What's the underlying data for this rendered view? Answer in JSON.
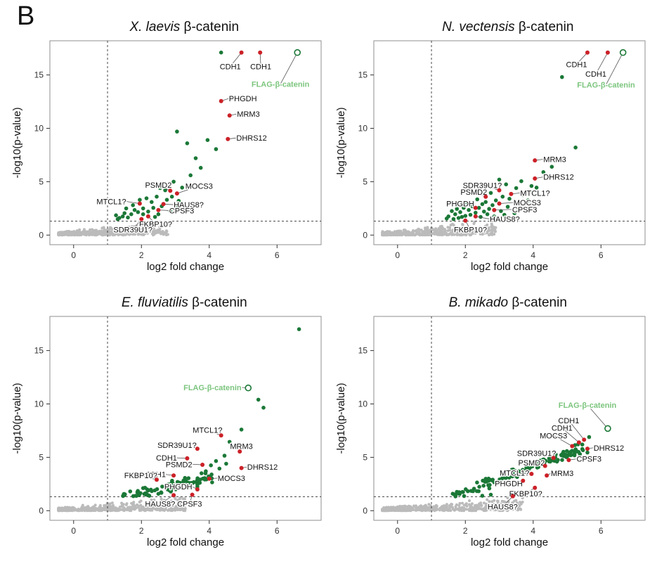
{
  "panel_label": "B",
  "colors": {
    "green_point": "#1b7837",
    "red_point": "#cc2128",
    "gray_point": "#bbbbbb",
    "flag_green": "#7cc57e",
    "panel_border": "#8f8f8f",
    "threshold_line": "#333333",
    "connector": "#555555"
  },
  "chart_data": [
    {
      "type": "scatter",
      "title_italic": "X. laevis",
      "title_rest": " β-catenin",
      "xlabel": "log2 fold change",
      "ylabel": "-log10(p-value)",
      "xlim": [
        -0.7,
        7.3
      ],
      "ylim": [
        -0.9,
        18.2
      ],
      "xticks": [
        0,
        2,
        4,
        6
      ],
      "yticks": [
        0,
        5,
        10,
        15
      ],
      "vline": 1.0,
      "hline": 1.3,
      "gray_cloud": {
        "seed": 101,
        "n": 430,
        "xmin": -0.45,
        "xmax": 2.8,
        "ycap": 1.55
      },
      "green_band": null,
      "green_points": [
        [
          4.35,
          17.1
        ],
        [
          3.05,
          9.7
        ],
        [
          3.35,
          8.6
        ],
        [
          3.95,
          8.9
        ],
        [
          4.2,
          8.05
        ],
        [
          3.6,
          7.2
        ],
        [
          2.95,
          5.0
        ],
        [
          3.2,
          4.45
        ],
        [
          3.45,
          5.6
        ],
        [
          3.75,
          6.3
        ],
        [
          2.7,
          4.2
        ],
        [
          2.45,
          3.6
        ],
        [
          2.3,
          3.1
        ],
        [
          2.15,
          3.45
        ],
        [
          2.6,
          2.7
        ],
        [
          2.75,
          3.3
        ],
        [
          2.05,
          2.5
        ],
        [
          1.9,
          2.15
        ],
        [
          1.8,
          2.35
        ],
        [
          1.7,
          1.95
        ],
        [
          1.6,
          1.65
        ],
        [
          1.5,
          2.05
        ],
        [
          1.45,
          1.75
        ],
        [
          1.35,
          1.6
        ],
        [
          1.25,
          1.85
        ],
        [
          2.2,
          2.2
        ],
        [
          2.35,
          2.55
        ],
        [
          2.5,
          1.95
        ],
        [
          2.9,
          3.6
        ],
        [
          3.1,
          3.2
        ],
        [
          1.55,
          2.5
        ],
        [
          1.75,
          2.8
        ],
        [
          2.05,
          1.95
        ],
        [
          2.85,
          2.25
        ],
        [
          3.25,
          2.75
        ],
        [
          1.95,
          3.3
        ],
        [
          2.55,
          4.4
        ],
        [
          3.0,
          2.6
        ],
        [
          1.3,
          1.5
        ],
        [
          2.4,
          1.7
        ]
      ],
      "flag": {
        "t": "FLAG-β-catenin",
        "x": 6.6,
        "y": 17.1,
        "lx": 6.1,
        "ly": 14.15,
        "a": "middle"
      },
      "labels": [
        {
          "t": "CDH1",
          "x": 4.95,
          "y": 17.1,
          "lx": 4.62,
          "ly": 15.8,
          "a": "middle"
        },
        {
          "t": "CDH1",
          "x": 5.5,
          "y": 17.1,
          "lx": 5.52,
          "ly": 15.8,
          "a": "middle"
        },
        {
          "t": "PHGDH",
          "x": 4.35,
          "y": 12.55,
          "lx": 4.58,
          "ly": 12.8,
          "a": "start"
        },
        {
          "t": "MRM3",
          "x": 4.6,
          "y": 11.2,
          "lx": 4.82,
          "ly": 11.35,
          "a": "start"
        },
        {
          "t": "DHRS12",
          "x": 4.55,
          "y": 9.0,
          "lx": 4.8,
          "ly": 9.1,
          "a": "start"
        },
        {
          "t": "PSMD2",
          "x": 2.85,
          "y": 4.15,
          "lx": 2.5,
          "ly": 4.7,
          "a": "middle"
        },
        {
          "t": "MOCS3",
          "x": 3.05,
          "y": 3.9,
          "lx": 3.7,
          "ly": 4.6,
          "a": "middle"
        },
        {
          "t": "MTCL1?",
          "x": 1.95,
          "y": 2.95,
          "lx": 1.55,
          "ly": 3.15,
          "a": "end"
        },
        {
          "t": "HAUS8?",
          "x": 2.65,
          "y": 2.9,
          "lx": 2.95,
          "ly": 2.85,
          "a": "start"
        },
        {
          "t": "CPSF3",
          "x": 2.5,
          "y": 2.35,
          "lx": 2.82,
          "ly": 2.3,
          "a": "start"
        },
        {
          "t": "FKBP10?",
          "x": 2.2,
          "y": 1.75,
          "lx": 2.42,
          "ly": 1.05,
          "a": "middle"
        },
        {
          "t": "SDR39U1?",
          "x": 2.0,
          "y": 1.5,
          "lx": 1.75,
          "ly": 0.5,
          "a": "middle"
        }
      ]
    },
    {
      "type": "scatter",
      "title_italic": "N. vectensis",
      "title_rest": " β-catenin",
      "xlabel": "log2 fold change",
      "ylabel": "-log10(p-value)",
      "xlim": [
        -0.7,
        7.3
      ],
      "ylim": [
        -0.9,
        18.2
      ],
      "xticks": [
        0,
        2,
        4,
        6
      ],
      "yticks": [
        0,
        5,
        10,
        15
      ],
      "vline": 1.0,
      "hline": 1.3,
      "gray_cloud": {
        "seed": 202,
        "n": 430,
        "xmin": -0.45,
        "xmax": 2.9,
        "ycap": 1.5
      },
      "green_band": null,
      "green_points": [
        [
          4.85,
          14.8
        ],
        [
          5.25,
          8.2
        ],
        [
          4.55,
          6.4
        ],
        [
          4.3,
          5.9
        ],
        [
          3.95,
          4.6
        ],
        [
          3.65,
          5.05
        ],
        [
          3.5,
          4.4
        ],
        [
          3.3,
          3.4
        ],
        [
          3.2,
          4.75
        ],
        [
          3.1,
          3.6
        ],
        [
          3.0,
          5.2
        ],
        [
          2.9,
          3.25
        ],
        [
          2.8,
          2.8
        ],
        [
          2.75,
          3.95
        ],
        [
          2.7,
          2.45
        ],
        [
          2.6,
          3.1
        ],
        [
          2.55,
          2.2
        ],
        [
          2.5,
          2.9
        ],
        [
          2.4,
          2.55
        ],
        [
          2.35,
          3.35
        ],
        [
          2.3,
          2.1
        ],
        [
          2.2,
          2.7
        ],
        [
          2.15,
          1.9
        ],
        [
          2.1,
          2.35
        ],
        [
          2.0,
          1.8
        ],
        [
          1.95,
          2.55
        ],
        [
          1.9,
          1.7
        ],
        [
          1.85,
          2.15
        ],
        [
          1.8,
          1.6
        ],
        [
          1.7,
          1.95
        ],
        [
          1.65,
          1.5
        ],
        [
          1.6,
          2.25
        ],
        [
          1.5,
          1.75
        ],
        [
          1.45,
          1.55
        ],
        [
          2.45,
          1.7
        ],
        [
          2.65,
          1.95
        ],
        [
          2.85,
          1.75
        ],
        [
          3.05,
          2.25
        ],
        [
          3.25,
          2.65
        ],
        [
          3.45,
          2.05
        ],
        [
          2.05,
          3.05
        ],
        [
          1.75,
          2.45
        ],
        [
          4.1,
          4.45
        ],
        [
          3.7,
          3.75
        ],
        [
          3.85,
          3.25
        ],
        [
          3.15,
          1.9
        ],
        [
          3.55,
          2.4
        ]
      ],
      "flag": {
        "t": "FLAG-β-catenin",
        "x": 6.65,
        "y": 17.1,
        "lx": 6.15,
        "ly": 14.1,
        "a": "middle"
      },
      "labels": [
        {
          "t": "CDH1",
          "x": 5.6,
          "y": 17.1,
          "lx": 5.28,
          "ly": 16.0,
          "a": "middle"
        },
        {
          "t": "CDH1",
          "x": 6.2,
          "y": 17.1,
          "lx": 5.85,
          "ly": 15.1,
          "a": "middle"
        },
        {
          "t": "MRM3",
          "x": 4.05,
          "y": 7.0,
          "lx": 4.3,
          "ly": 7.1,
          "a": "start"
        },
        {
          "t": "DHRS12",
          "x": 4.05,
          "y": 5.3,
          "lx": 4.3,
          "ly": 5.45,
          "a": "start"
        },
        {
          "t": "SDR39U1?",
          "x": 3.0,
          "y": 4.2,
          "lx": 2.5,
          "ly": 4.65,
          "a": "middle"
        },
        {
          "t": "PSMD2",
          "x": 2.6,
          "y": 3.6,
          "lx": 2.25,
          "ly": 4.05,
          "a": "middle"
        },
        {
          "t": "MTCL1?",
          "x": 3.35,
          "y": 3.85,
          "lx": 3.62,
          "ly": 3.95,
          "a": "start"
        },
        {
          "t": "PHGDH",
          "x": 2.3,
          "y": 2.55,
          "lx": 1.85,
          "ly": 2.95,
          "a": "middle"
        },
        {
          "t": "MOCS3",
          "x": 3.0,
          "y": 2.95,
          "lx": 3.42,
          "ly": 3.05,
          "a": "start"
        },
        {
          "t": "CPSF3",
          "x": 2.85,
          "y": 2.35,
          "lx": 3.38,
          "ly": 2.4,
          "a": "start"
        },
        {
          "t": "HAUS8?",
          "x": 2.3,
          "y": 1.75,
          "lx": 2.72,
          "ly": 1.5,
          "a": "start"
        },
        {
          "t": "FKBP10?",
          "x": 2.0,
          "y": 1.35,
          "lx": 2.15,
          "ly": 0.5,
          "a": "middle"
        }
      ]
    },
    {
      "type": "scatter",
      "title_italic": "E. fluviatilis",
      "title_rest": " β-catenin",
      "xlabel": "log2 fold change",
      "ylabel": "-log10(p-value)",
      "xlim": [
        -0.7,
        7.3
      ],
      "ylim": [
        -0.9,
        18.2
      ],
      "xticks": [
        0,
        2,
        4,
        6
      ],
      "yticks": [
        0,
        5,
        10,
        15
      ],
      "vline": 1.0,
      "hline": 1.3,
      "gray_cloud": {
        "seed": 303,
        "n": 480,
        "xmin": -0.45,
        "xmax": 3.3,
        "ycap": 1.45
      },
      "green_band": {
        "seed": 7,
        "n": 95,
        "x0": 1.45,
        "x1": 4.1,
        "slope": 0.72,
        "intercept": 0.18,
        "jitter": 0.55,
        "ymin": 1.35
      },
      "green_points": [
        [
          6.65,
          17.0
        ],
        [
          5.45,
          10.4
        ],
        [
          5.6,
          9.65
        ],
        [
          4.95,
          7.6
        ],
        [
          4.6,
          6.45
        ],
        [
          4.45,
          5.15
        ],
        [
          4.2,
          4.65
        ],
        [
          4.3,
          3.95
        ],
        [
          4.05,
          4.25
        ],
        [
          3.9,
          3.7
        ],
        [
          4.5,
          4.4
        ]
      ],
      "flag": {
        "t": "FLAG-β-catenin",
        "x": 5.15,
        "y": 11.5,
        "lx": 4.95,
        "ly": 11.55,
        "a": "end"
      },
      "labels": [
        {
          "t": "MTCL1?",
          "x": 4.35,
          "y": 7.05,
          "lx": 3.95,
          "ly": 7.55,
          "a": "middle"
        },
        {
          "t": "SDR39U1?",
          "x": 3.65,
          "y": 5.8,
          "lx": 3.05,
          "ly": 6.15,
          "a": "middle"
        },
        {
          "t": "MRM3",
          "x": 4.9,
          "y": 5.55,
          "lx": 4.95,
          "ly": 6.05,
          "a": "middle"
        },
        {
          "t": "CDH1",
          "x": 3.35,
          "y": 4.9,
          "lx": 3.05,
          "ly": 4.95,
          "a": "end"
        },
        {
          "t": "PSMD2",
          "x": 3.8,
          "y": 4.3,
          "lx": 3.5,
          "ly": 4.35,
          "a": "end"
        },
        {
          "t": "DHRS12",
          "x": 4.95,
          "y": 4.0,
          "lx": 5.12,
          "ly": 4.1,
          "a": "start"
        },
        {
          "t": "CDH1",
          "x": 2.95,
          "y": 3.3,
          "lx": 2.72,
          "ly": 3.4,
          "a": "end"
        },
        {
          "t": "FKBP10?",
          "x": 2.45,
          "y": 2.9,
          "lx": 1.98,
          "ly": 3.3,
          "a": "middle"
        },
        {
          "t": "MOCS3",
          "x": 4.0,
          "y": 3.0,
          "lx": 4.25,
          "ly": 3.05,
          "a": "start"
        },
        {
          "t": "PHGDH",
          "x": 3.65,
          "y": 2.0,
          "lx": 3.5,
          "ly": 2.25,
          "a": "end"
        },
        {
          "t": "HAUS8?",
          "x": 2.95,
          "y": 1.45,
          "lx": 2.55,
          "ly": 0.65,
          "a": "middle"
        },
        {
          "t": "CPSF3",
          "x": 3.5,
          "y": 1.5,
          "lx": 3.42,
          "ly": 0.65,
          "a": "middle"
        }
      ]
    },
    {
      "type": "scatter",
      "title_italic": "B. mikado",
      "title_rest": " β-catenin",
      "xlabel": "log2 fold change",
      "ylabel": "-log10(p-value)",
      "xlim": [
        -0.7,
        7.3
      ],
      "ylim": [
        -0.9,
        18.2
      ],
      "xticks": [
        0,
        2,
        4,
        6
      ],
      "yticks": [
        0,
        5,
        10,
        15
      ],
      "vline": 1.0,
      "hline": 1.3,
      "gray_cloud": {
        "seed": 404,
        "n": 480,
        "xmin": -0.45,
        "xmax": 3.7,
        "ycap": 1.4
      },
      "green_band": {
        "seed": 9,
        "n": 120,
        "x0": 1.55,
        "x1": 5.55,
        "slope": 1.18,
        "intercept": -0.55,
        "jitter": 0.5,
        "ymin": 1.3
      },
      "green_points": [
        [
          5.65,
          6.9
        ],
        [
          5.45,
          6.2
        ],
        [
          5.25,
          5.75
        ],
        [
          5.6,
          5.45
        ],
        [
          4.85,
          5.2
        ],
        [
          5.1,
          5.5
        ],
        [
          4.7,
          4.6
        ],
        [
          2.75,
          1.5
        ],
        [
          2.5,
          1.4
        ]
      ],
      "flag": {
        "t": "FLAG-β-catenin",
        "x": 6.2,
        "y": 7.7,
        "lx": 5.6,
        "ly": 9.9,
        "a": "middle"
      },
      "labels": [
        {
          "t": "CDH1",
          "x": 5.5,
          "y": 6.65,
          "lx": 5.05,
          "ly": 8.45,
          "a": "middle"
        },
        {
          "t": "CDH1",
          "x": 5.35,
          "y": 6.4,
          "lx": 4.85,
          "ly": 7.75,
          "a": "middle"
        },
        {
          "t": "MOCS3",
          "x": 5.15,
          "y": 6.05,
          "lx": 4.6,
          "ly": 7.05,
          "a": "middle"
        },
        {
          "t": "DHRS12",
          "x": 5.6,
          "y": 5.8,
          "lx": 5.78,
          "ly": 5.9,
          "a": "start"
        },
        {
          "t": "SDR39U1?",
          "x": 4.6,
          "y": 4.95,
          "lx": 4.1,
          "ly": 5.4,
          "a": "middle"
        },
        {
          "t": "CPSF3",
          "x": 5.05,
          "y": 4.75,
          "lx": 5.28,
          "ly": 4.85,
          "a": "start"
        },
        {
          "t": "PSMD2",
          "x": 4.35,
          "y": 4.2,
          "lx": 3.95,
          "ly": 4.5,
          "a": "middle"
        },
        {
          "t": "MTCL1?",
          "x": 3.95,
          "y": 3.45,
          "lx": 3.45,
          "ly": 3.55,
          "a": "middle"
        },
        {
          "t": "MRM3",
          "x": 4.4,
          "y": 3.3,
          "lx": 4.52,
          "ly": 3.5,
          "a": "start"
        },
        {
          "t": "PHGDH",
          "x": 3.7,
          "y": 2.8,
          "lx": 3.28,
          "ly": 2.55,
          "a": "middle"
        },
        {
          "t": "FKBP10?",
          "x": 4.05,
          "y": 2.15,
          "lx": 3.78,
          "ly": 1.6,
          "a": "middle"
        },
        {
          "t": "HAUS8?",
          "x": 3.4,
          "y": 1.35,
          "lx": 3.1,
          "ly": 0.4,
          "a": "middle"
        }
      ]
    }
  ]
}
